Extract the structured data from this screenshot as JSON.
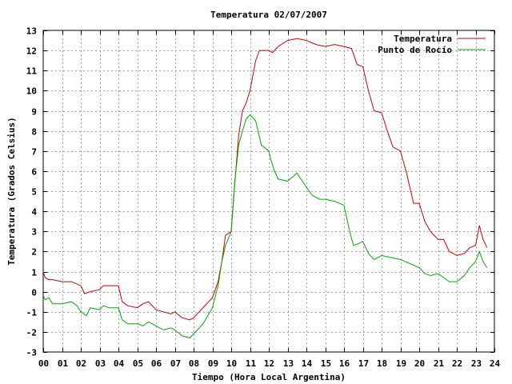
{
  "chart_data": {
    "type": "line",
    "title": "Temperatura 02/07/2007",
    "xlabel": "Tiempo (Hora Local Argentina)",
    "ylabel": "Temperatura (Grados Celsius)",
    "xlim": [
      0,
      24
    ],
    "ylim": [
      -3,
      13
    ],
    "grid": true,
    "legend_position": "top-right",
    "x_tick_labels": [
      "00",
      "01",
      "02",
      "03",
      "04",
      "05",
      "06",
      "07",
      "08",
      "09",
      "10",
      "11",
      "12",
      "13",
      "14",
      "15",
      "16",
      "17",
      "18",
      "19",
      "20",
      "21",
      "22",
      "23",
      "24"
    ],
    "y_tick_labels": [
      "-3",
      "-2",
      "-1",
      "0",
      "1",
      "2",
      "3",
      "4",
      "5",
      "6",
      "7",
      "8",
      "9",
      "10",
      "11",
      "12",
      "13"
    ],
    "series": [
      {
        "name": "Temperatura",
        "color": "#cc0000",
        "points": [
          [
            0.0,
            1.0
          ],
          [
            0.1,
            0.7
          ],
          [
            0.3,
            0.6
          ],
          [
            0.5,
            0.6
          ],
          [
            1.0,
            0.5
          ],
          [
            1.5,
            0.5
          ],
          [
            2.0,
            0.3
          ],
          [
            2.2,
            -0.1
          ],
          [
            2.5,
            0.0
          ],
          [
            3.0,
            0.1
          ],
          [
            3.2,
            0.3
          ],
          [
            3.5,
            0.3
          ],
          [
            4.0,
            0.3
          ],
          [
            4.2,
            -0.5
          ],
          [
            4.5,
            -0.7
          ],
          [
            5.0,
            -0.8
          ],
          [
            5.3,
            -0.6
          ],
          [
            5.6,
            -0.5
          ],
          [
            6.0,
            -0.9
          ],
          [
            6.4,
            -1.0
          ],
          [
            6.8,
            -1.1
          ],
          [
            7.0,
            -1.0
          ],
          [
            7.4,
            -1.3
          ],
          [
            7.8,
            -1.4
          ],
          [
            8.0,
            -1.3
          ],
          [
            8.5,
            -0.8
          ],
          [
            9.0,
            -0.3
          ],
          [
            9.3,
            0.5
          ],
          [
            9.5,
            1.5
          ],
          [
            9.7,
            2.8
          ],
          [
            10.0,
            3.0
          ],
          [
            10.2,
            5.5
          ],
          [
            10.4,
            7.8
          ],
          [
            10.6,
            9.0
          ],
          [
            10.8,
            9.4
          ],
          [
            11.0,
            10.0
          ],
          [
            11.3,
            11.5
          ],
          [
            11.5,
            12.0
          ],
          [
            12.0,
            12.0
          ],
          [
            12.2,
            11.9
          ],
          [
            12.5,
            12.2
          ],
          [
            13.0,
            12.5
          ],
          [
            13.5,
            12.6
          ],
          [
            14.0,
            12.5
          ],
          [
            14.5,
            12.3
          ],
          [
            15.0,
            12.2
          ],
          [
            15.5,
            12.3
          ],
          [
            16.0,
            12.2
          ],
          [
            16.4,
            12.1
          ],
          [
            16.7,
            11.3
          ],
          [
            17.0,
            11.2
          ],
          [
            17.3,
            10.0
          ],
          [
            17.6,
            9.0
          ],
          [
            18.0,
            8.9
          ],
          [
            18.3,
            8.0
          ],
          [
            18.6,
            7.2
          ],
          [
            19.0,
            7.0
          ],
          [
            19.3,
            6.0
          ],
          [
            19.7,
            4.4
          ],
          [
            20.0,
            4.4
          ],
          [
            20.3,
            3.5
          ],
          [
            20.6,
            3.0
          ],
          [
            21.0,
            2.6
          ],
          [
            21.3,
            2.6
          ],
          [
            21.6,
            2.0
          ],
          [
            22.0,
            1.8
          ],
          [
            22.4,
            1.9
          ],
          [
            22.7,
            2.2
          ],
          [
            23.0,
            2.3
          ],
          [
            23.2,
            3.3
          ],
          [
            23.4,
            2.6
          ],
          [
            23.6,
            2.2
          ]
        ]
      },
      {
        "name": "Punto de Rocío",
        "color": "#00aa00",
        "points": [
          [
            0.0,
            -0.2
          ],
          [
            0.1,
            -0.4
          ],
          [
            0.3,
            -0.3
          ],
          [
            0.5,
            -0.6
          ],
          [
            1.0,
            -0.6
          ],
          [
            1.5,
            -0.5
          ],
          [
            1.8,
            -0.7
          ],
          [
            2.0,
            -1.0
          ],
          [
            2.3,
            -1.2
          ],
          [
            2.5,
            -0.8
          ],
          [
            3.0,
            -0.9
          ],
          [
            3.2,
            -0.7
          ],
          [
            3.5,
            -0.8
          ],
          [
            4.0,
            -0.8
          ],
          [
            4.2,
            -1.4
          ],
          [
            4.5,
            -1.6
          ],
          [
            5.0,
            -1.6
          ],
          [
            5.3,
            -1.7
          ],
          [
            5.6,
            -1.5
          ],
          [
            6.0,
            -1.7
          ],
          [
            6.4,
            -1.9
          ],
          [
            6.8,
            -1.8
          ],
          [
            7.0,
            -1.9
          ],
          [
            7.4,
            -2.2
          ],
          [
            7.8,
            -2.3
          ],
          [
            8.0,
            -2.1
          ],
          [
            8.5,
            -1.6
          ],
          [
            9.0,
            -0.8
          ],
          [
            9.3,
            0.3
          ],
          [
            9.5,
            1.5
          ],
          [
            9.7,
            2.3
          ],
          [
            10.0,
            3.0
          ],
          [
            10.2,
            5.6
          ],
          [
            10.4,
            7.3
          ],
          [
            10.6,
            8.0
          ],
          [
            10.8,
            8.6
          ],
          [
            11.0,
            8.8
          ],
          [
            11.3,
            8.5
          ],
          [
            11.6,
            7.3
          ],
          [
            12.0,
            7.0
          ],
          [
            12.1,
            6.6
          ],
          [
            12.3,
            6.0
          ],
          [
            12.5,
            5.6
          ],
          [
            13.0,
            5.5
          ],
          [
            13.5,
            5.9
          ],
          [
            14.0,
            5.2
          ],
          [
            14.3,
            4.8
          ],
          [
            14.7,
            4.6
          ],
          [
            15.0,
            4.6
          ],
          [
            15.5,
            4.5
          ],
          [
            16.0,
            4.3
          ],
          [
            16.3,
            3.0
          ],
          [
            16.5,
            2.3
          ],
          [
            16.8,
            2.4
          ],
          [
            17.0,
            2.5
          ],
          [
            17.3,
            1.9
          ],
          [
            17.6,
            1.6
          ],
          [
            18.0,
            1.8
          ],
          [
            18.5,
            1.7
          ],
          [
            19.0,
            1.6
          ],
          [
            19.5,
            1.4
          ],
          [
            20.0,
            1.2
          ],
          [
            20.3,
            0.9
          ],
          [
            20.6,
            0.8
          ],
          [
            21.0,
            0.9
          ],
          [
            21.3,
            0.7
          ],
          [
            21.6,
            0.5
          ],
          [
            22.0,
            0.5
          ],
          [
            22.4,
            0.8
          ],
          [
            22.7,
            1.2
          ],
          [
            23.0,
            1.5
          ],
          [
            23.2,
            2.0
          ],
          [
            23.4,
            1.5
          ],
          [
            23.6,
            1.2
          ]
        ]
      }
    ]
  }
}
